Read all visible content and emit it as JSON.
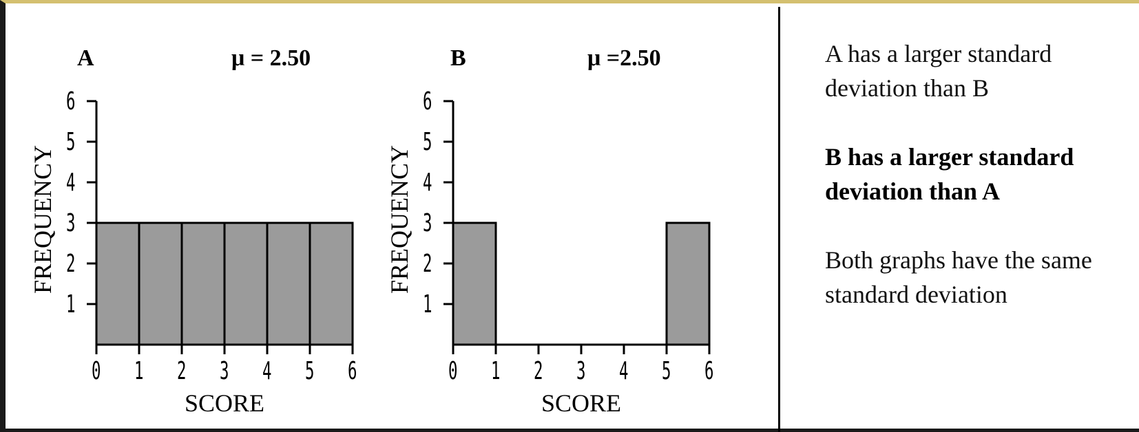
{
  "chart_data": [
    {
      "type": "bar",
      "label": "A",
      "mean_label": "μ = 2.50",
      "xlabel": "SCORE",
      "ylabel": "FREQUENCY",
      "bins": [
        [
          0,
          1
        ],
        [
          1,
          2
        ],
        [
          2,
          3
        ],
        [
          3,
          4
        ],
        [
          4,
          5
        ],
        [
          5,
          6
        ]
      ],
      "values": [
        3,
        3,
        3,
        3,
        3,
        3
      ],
      "xticks": [
        "0",
        "1",
        "2",
        "3",
        "4",
        "5",
        "6"
      ],
      "yticks": [
        "1",
        "2",
        "3",
        "4",
        "5",
        "6"
      ],
      "xlim": [
        0,
        6
      ],
      "ylim": [
        0,
        6
      ],
      "bar_color": "#9b9b9b"
    },
    {
      "type": "bar",
      "label": "B",
      "mean_label": "μ =2.50",
      "xlabel": "SCORE",
      "ylabel": "FREQUENCY",
      "bins": [
        [
          0,
          1
        ],
        [
          1,
          2
        ],
        [
          2,
          3
        ],
        [
          3,
          4
        ],
        [
          4,
          5
        ],
        [
          5,
          6
        ]
      ],
      "values": [
        3,
        0,
        0,
        0,
        0,
        3
      ],
      "xticks": [
        "0",
        "1",
        "2",
        "3",
        "4",
        "5",
        "6"
      ],
      "yticks": [
        "1",
        "2",
        "3",
        "4",
        "5",
        "6"
      ],
      "xlim": [
        0,
        6
      ],
      "ylim": [
        0,
        6
      ],
      "bar_color": "#9b9b9b"
    }
  ],
  "options": [
    {
      "text": "A has a larger standard deviation than B",
      "selected": false
    },
    {
      "text": "B has a larger standard deviation than A",
      "selected": true
    },
    {
      "text": "Both graphs have the same standard deviation",
      "selected": false
    }
  ]
}
